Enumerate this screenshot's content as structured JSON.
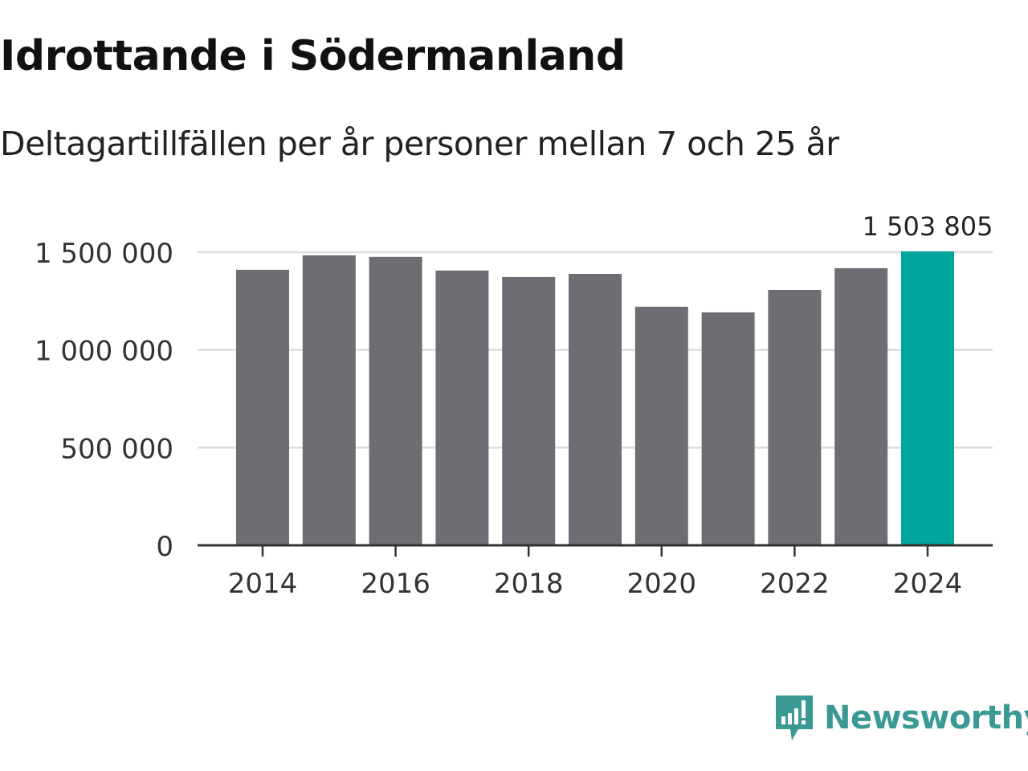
{
  "chart_data": {
    "type": "bar",
    "title": "Idrottande i Södermanland",
    "subtitle": "Deltagartillfällen per år personer mellan 7 och 25 år",
    "categories": [
      2014,
      2015,
      2016,
      2017,
      2018,
      2019,
      2020,
      2021,
      2022,
      2023,
      2024
    ],
    "values": [
      1410000,
      1484000,
      1476000,
      1406000,
      1373000,
      1389000,
      1221000,
      1192000,
      1307000,
      1418000,
      1503805
    ],
    "highlight_label": "1 503 805",
    "xticks": [
      "2014",
      "2016",
      "2018",
      "2020",
      "2022",
      "2024"
    ],
    "yticks": [
      {
        "v": 0,
        "label": "0"
      },
      {
        "v": 500000,
        "label": "500 000"
      },
      {
        "v": 1000000,
        "label": "1 000 000"
      },
      {
        "v": 1500000,
        "label": "1 500 000"
      }
    ],
    "ylim": [
      0,
      1500000
    ],
    "grid": true,
    "xlabel": "",
    "ylabel": "",
    "colors": {
      "bar": "#6e6d73",
      "highlight": "#00a59b",
      "grid": "#dddddd",
      "axis": "#333333"
    }
  },
  "logo": {
    "text": "Newsworthy",
    "color": "#3a9a93"
  }
}
